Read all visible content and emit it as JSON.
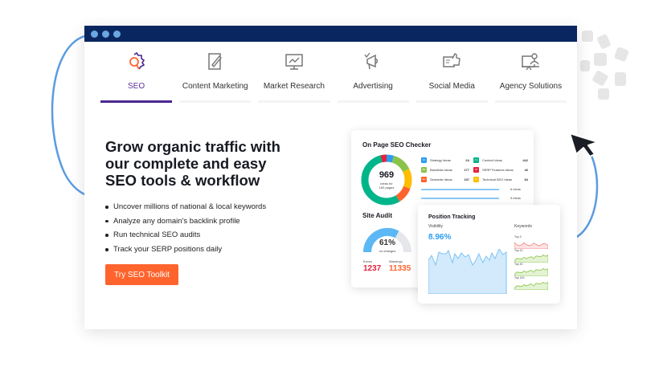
{
  "window": {
    "dots": 3
  },
  "tabs": [
    {
      "label": "SEO",
      "icon": "seo-gear-magnifier-icon",
      "active": true
    },
    {
      "label": "Content Marketing",
      "icon": "document-pen-icon"
    },
    {
      "label": "Market Research",
      "icon": "monitor-chart-icon"
    },
    {
      "label": "Advertising",
      "icon": "megaphone-icon"
    },
    {
      "label": "Social Media",
      "icon": "thumbs-up-chat-icon"
    },
    {
      "label": "Agency Solutions",
      "icon": "presenter-board-icon"
    }
  ],
  "hero": {
    "title": "Grow organic traffic with our complete and easy SEO tools & workflow",
    "bullets": [
      "Uncover millions of national & local keywords",
      "Analyze any domain's backlink profile",
      "Run technical SEO audits",
      "Track your SERP positions daily"
    ],
    "cta": "Try SEO Toolkit"
  },
  "on_page": {
    "title": "On Page SEO Checker",
    "total": "969",
    "total_sub1": "ideas for",
    "total_sub2": "183 pages",
    "legend": [
      {
        "abbr": "St",
        "label": "Strategy Ideas",
        "value": "64",
        "color": "#2d9cf0"
      },
      {
        "abbr": "Co",
        "label": "Content Ideas",
        "value": "442",
        "color": "#00b58a"
      },
      {
        "abbr": "Ba",
        "label": "Backlinks Ideas",
        "value": "177",
        "color": "#8bc34a"
      },
      {
        "abbr": "Sf",
        "label": "SERP Features Ideas",
        "value": "46",
        "color": "#e8213c"
      },
      {
        "abbr": "Se",
        "label": "Semantic Ideas",
        "value": "157",
        "color": "#ff642d"
      },
      {
        "abbr": "Te",
        "label": "Technical SEO Ideas",
        "value": "84",
        "color": "#ffbd00"
      }
    ],
    "bars": [
      {
        "label": "6 ideas"
      },
      {
        "label": "5 ideas"
      }
    ]
  },
  "site_audit": {
    "title": "Site Audit",
    "percent": "61%",
    "percent_value": 61,
    "sub": "no changes",
    "errors_label": "Errors",
    "errors": "1237",
    "warnings_label": "Warnings",
    "warnings": "11335"
  },
  "position": {
    "title": "Position Tracking",
    "visibility_label": "Visibility",
    "visibility": "8.96%",
    "keywords_label": "Keywords",
    "keywords": [
      "Top 3",
      "Top 10",
      "Top 20",
      "Top 100"
    ]
  },
  "colors": {
    "navy": "#0a2660",
    "accent": "#ff642d",
    "purple": "#4a2790",
    "blue": "#2d9cf0"
  }
}
